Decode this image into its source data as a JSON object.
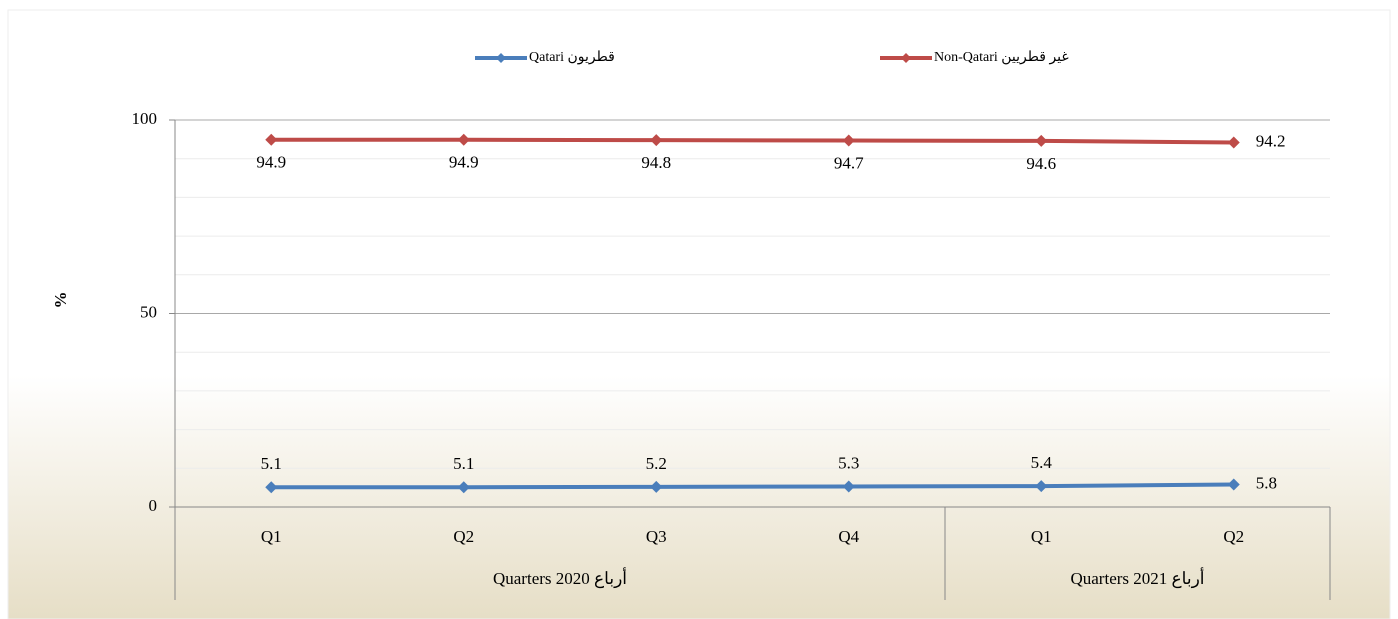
{
  "chart_data": {
    "type": "line",
    "y_label": "%",
    "categories": [
      "Q1",
      "Q2",
      "Q3",
      "Q4",
      "Q1",
      "Q2"
    ],
    "groups": [
      {
        "label": "Quarters  2020  أرباع",
        "span": 4
      },
      {
        "label": "Quarters 2021  أرباع",
        "span": 2
      }
    ],
    "series": [
      {
        "name": "Qatari قطريون",
        "color": "#4a7ebb",
        "values": [
          5.1,
          5.1,
          5.2,
          5.3,
          5.4,
          5.8
        ],
        "label_pos": "above"
      },
      {
        "name": "Non-Qatari غير قطريين",
        "color": "#be4b48",
        "values": [
          94.9,
          94.9,
          94.8,
          94.7,
          94.6,
          94.2
        ],
        "label_pos": "below"
      }
    ],
    "ylim": [
      0,
      100
    ],
    "yticks": [
      0,
      50,
      100
    ],
    "minor_yticks": [
      10,
      20,
      30,
      40,
      60,
      70,
      80,
      90
    ],
    "grid": true,
    "legend": "top"
  }
}
